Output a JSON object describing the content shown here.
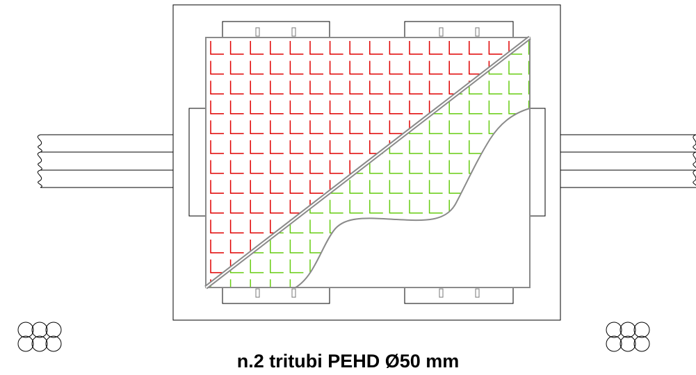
{
  "caption": "n.2 tritubi PEHD Ø50 mm",
  "colors": {
    "outline": "#000000",
    "frame": "#8a8a8a",
    "grid_upper": "#e00000",
    "grid_lower": "#66cc11",
    "background": "#ffffff"
  }
}
